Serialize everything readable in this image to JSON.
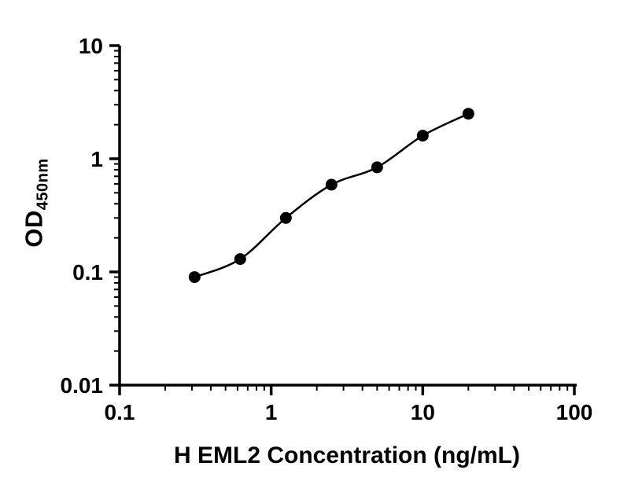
{
  "chart_data": {
    "type": "scatter",
    "title": "",
    "xlabel": "H EML2 Concentration (ng/mL)",
    "ylabel": "OD",
    "ylabel_subscript": "450nm",
    "x_scale": "log",
    "y_scale": "log",
    "xlim": [
      0.1,
      100
    ],
    "ylim": [
      0.01,
      10
    ],
    "x_ticks": [
      0.1,
      1,
      10,
      100
    ],
    "x_tick_labels": [
      "0.1",
      "1",
      "10",
      "100"
    ],
    "y_ticks": [
      0.01,
      0.1,
      1,
      10
    ],
    "y_tick_labels": [
      "0.01",
      "0.1",
      "1",
      "10"
    ],
    "grid": false,
    "legend": "none",
    "marker_color": "#000000",
    "line_color": "#000000",
    "axis_color": "#000000",
    "points": [
      {
        "x": 0.3125,
        "y": 0.09
      },
      {
        "x": 0.625,
        "y": 0.13
      },
      {
        "x": 1.25,
        "y": 0.3
      },
      {
        "x": 2.5,
        "y": 0.59
      },
      {
        "x": 5,
        "y": 0.84
      },
      {
        "x": 10,
        "y": 1.6
      },
      {
        "x": 20,
        "y": 2.5
      }
    ]
  }
}
